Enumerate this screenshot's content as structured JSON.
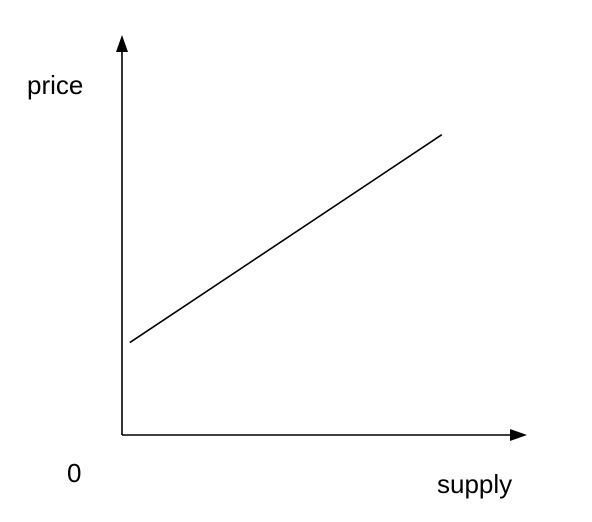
{
  "chart_data": {
    "type": "line",
    "title": "",
    "xlabel": "supply",
    "ylabel": "price",
    "origin_label": "0",
    "xlim": [
      0,
      100
    ],
    "ylim": [
      0,
      100
    ],
    "grid": false,
    "legend": "none",
    "series": [
      {
        "x": [
          2,
          82
        ],
        "y": [
          24,
          78
        ]
      }
    ],
    "colors": {
      "axis": "#000000",
      "line": "#000000",
      "background": "#ffffff"
    }
  }
}
